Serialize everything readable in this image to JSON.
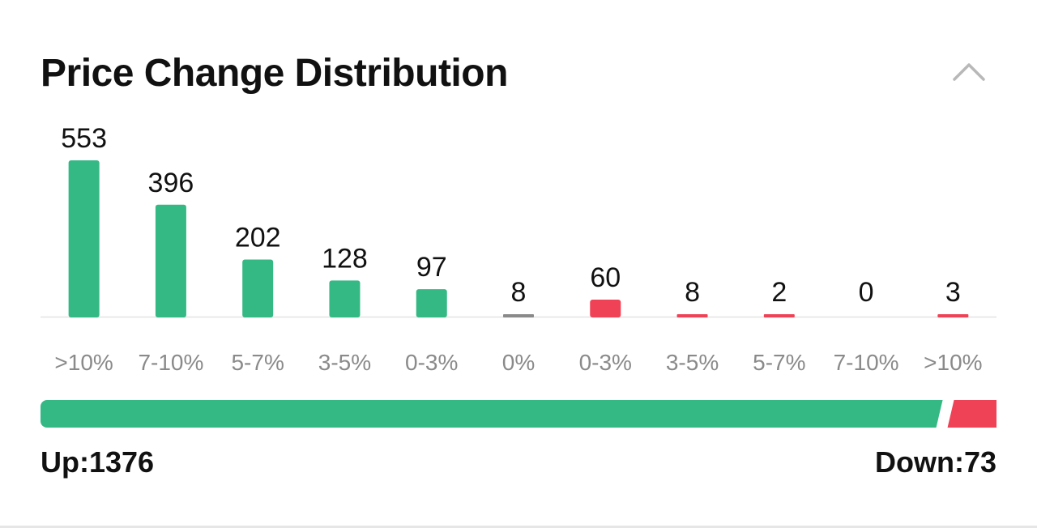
{
  "header": {
    "title": "Price Change Distribution",
    "collapse_icon": "chevron-up-icon"
  },
  "colors": {
    "up": "#34b984",
    "down": "#ef4256",
    "flat": "#8a8a8a",
    "baseline": "#e3e3e3",
    "label": "#111111",
    "tick": "#8a8a8a"
  },
  "chart_data": {
    "type": "bar",
    "title": "Price Change Distribution",
    "categories": [
      ">10%",
      "7-10%",
      "5-7%",
      "3-5%",
      "0-3%",
      "0%",
      "0-3%",
      "3-5%",
      "5-7%",
      "7-10%",
      ">10%"
    ],
    "values": [
      553,
      396,
      202,
      128,
      97,
      8,
      60,
      8,
      2,
      0,
      3
    ],
    "directions": [
      "up",
      "up",
      "up",
      "up",
      "up",
      "flat",
      "down",
      "down",
      "down",
      "down",
      "down"
    ],
    "ylim": [
      0,
      553
    ],
    "grid": false,
    "data_labels": true
  },
  "summary": {
    "up_label": "Up:1376",
    "down_label": "Down:73",
    "up_count": 1376,
    "down_count": 73
  }
}
